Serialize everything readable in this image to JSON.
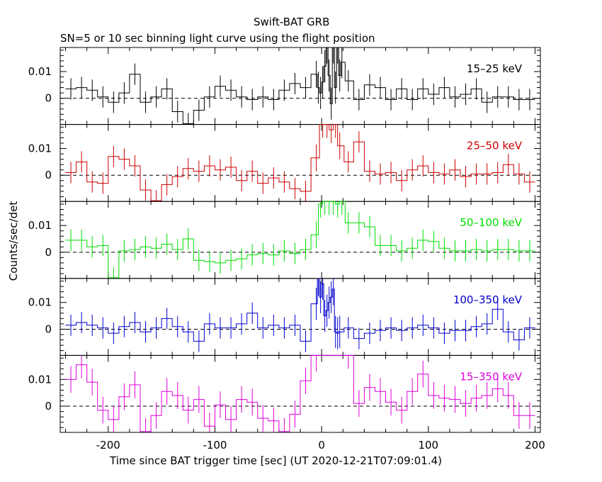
{
  "title": "Swift-BAT GRB",
  "subtitle": "SN=5 or 10 sec binning light curve using the flight position",
  "chart_data": {
    "type": "line",
    "title": "Swift-BAT GRB",
    "subtitle": "SN=5 or 10 sec binning light curve using the flight position",
    "xlabel": "Time since BAT trigger time [sec] (UT 2020-12-21T07:09:01.4)",
    "ylabel": "Counts/sec/det",
    "xlim": [
      -245,
      205
    ],
    "ylim": [
      -0.0098,
      0.019
    ],
    "x_ticks": [
      -200,
      -100,
      0,
      100,
      200
    ],
    "y_ticks": [
      0,
      0.01
    ],
    "y_tick_labels": [
      "0",
      "0.01"
    ],
    "zero_line": "dashed",
    "panels": [
      {
        "name": "15–25 keV",
        "color": "#000000",
        "x": [
          -235,
          -225,
          -215,
          -205,
          -195,
          -185,
          -175,
          -165,
          -155,
          -145,
          -135,
          -125,
          -115,
          -105,
          -95,
          -85,
          -75,
          -65,
          -55,
          -45,
          -35,
          -25,
          -15,
          -5,
          -3,
          -1,
          1,
          3,
          5,
          7,
          9,
          11,
          13,
          15,
          17,
          19,
          25,
          35,
          45,
          55,
          65,
          75,
          85,
          95,
          105,
          115,
          125,
          135,
          145,
          155,
          165,
          175,
          185,
          195
        ],
        "y": [
          0.0035,
          0.004,
          0.003,
          0.0005,
          -0.0015,
          0.002,
          0.009,
          -0.0015,
          0.0005,
          0.0035,
          -0.005,
          -0.0095,
          -0.0045,
          0.0005,
          0.0045,
          0.003,
          0.0005,
          -0.0005,
          0.0005,
          -0.0005,
          0.003,
          0.0055,
          0.004,
          0.009,
          0.004,
          0.002,
          0.006,
          0.012,
          0.019,
          0.0085,
          -0.002,
          0.019,
          0.004,
          0.019,
          0.0085,
          0.0135,
          0.0065,
          -0.0005,
          0.005,
          0.004,
          -0.0005,
          0.0035,
          -0.0005,
          0.0035,
          0.0015,
          0.004,
          0.0005,
          0.0015,
          0.0035,
          -0.0015,
          0.0005,
          0.0005,
          -0.0005,
          -0.0005
        ],
        "err": [
          0.004,
          0.004,
          0.004,
          0.004,
          0.004,
          0.004,
          0.004,
          0.004,
          0.004,
          0.004,
          0.004,
          0.004,
          0.004,
          0.004,
          0.004,
          0.004,
          0.004,
          0.004,
          0.004,
          0.004,
          0.004,
          0.004,
          0.004,
          0.005,
          0.006,
          0.006,
          0.006,
          0.006,
          0.006,
          0.006,
          0.006,
          0.006,
          0.006,
          0.006,
          0.006,
          0.006,
          0.004,
          0.004,
          0.004,
          0.004,
          0.004,
          0.004,
          0.004,
          0.004,
          0.004,
          0.004,
          0.004,
          0.004,
          0.004,
          0.004,
          0.004,
          0.004,
          0.004,
          0.004
        ]
      },
      {
        "name": "25–50 keV",
        "color": "#cc0000",
        "x": [
          -235,
          -225,
          -215,
          -205,
          -195,
          -185,
          -175,
          -165,
          -155,
          -145,
          -135,
          -125,
          -115,
          -105,
          -95,
          -85,
          -75,
          -65,
          -55,
          -45,
          -35,
          -25,
          -15,
          -5,
          1,
          5,
          9,
          13,
          17,
          25,
          35,
          45,
          55,
          65,
          75,
          85,
          95,
          105,
          115,
          125,
          135,
          145,
          155,
          165,
          175,
          185,
          195
        ],
        "y": [
          0.001,
          0.005,
          -0.0025,
          -0.003,
          0.007,
          0.006,
          0.0035,
          -0.0055,
          -0.0095,
          -0.0035,
          -0.0005,
          0.0025,
          0.0015,
          0.0035,
          0.002,
          0.003,
          -0.002,
          0.0015,
          -0.003,
          -0.001,
          -0.0025,
          -0.005,
          -0.006,
          0.0065,
          0.019,
          0.019,
          0.017,
          0.019,
          0.011,
          0.005,
          0.0125,
          0.0015,
          0.0005,
          0.001,
          -0.002,
          0.002,
          0.0035,
          0.001,
          0.0005,
          0.002,
          -0.0005,
          0.0005,
          0.0005,
          0.001,
          0.004,
          0.0005,
          -0.0025
        ],
        "err": [
          0.004,
          0.004,
          0.004,
          0.004,
          0.004,
          0.004,
          0.004,
          0.004,
          0.004,
          0.004,
          0.004,
          0.004,
          0.004,
          0.004,
          0.004,
          0.004,
          0.004,
          0.004,
          0.004,
          0.004,
          0.004,
          0.004,
          0.004,
          0.005,
          0.005,
          0.005,
          0.005,
          0.005,
          0.005,
          0.004,
          0.004,
          0.004,
          0.004,
          0.004,
          0.004,
          0.004,
          0.004,
          0.004,
          0.004,
          0.004,
          0.004,
          0.004,
          0.004,
          0.004,
          0.004,
          0.004,
          0.004
        ]
      },
      {
        "name": "50–100 keV",
        "color": "#00dd00",
        "x": [
          -235,
          -225,
          -215,
          -205,
          -195,
          -185,
          -175,
          -165,
          -155,
          -145,
          -135,
          -125,
          -115,
          -105,
          -95,
          -85,
          -75,
          -65,
          -55,
          -45,
          -35,
          -25,
          -15,
          -5,
          -1,
          3,
          7,
          11,
          15,
          19,
          25,
          35,
          45,
          55,
          65,
          75,
          85,
          95,
          105,
          115,
          125,
          135,
          145,
          155,
          165,
          175,
          185,
          195
        ],
        "y": [
          0.0045,
          0.0045,
          0.002,
          0.0025,
          -0.0095,
          0.0005,
          0.001,
          0.002,
          0.0015,
          0.003,
          0.001,
          0.005,
          -0.003,
          -0.0035,
          -0.004,
          -0.003,
          -0.0025,
          -0.001,
          -0.0005,
          -0.001,
          0.0005,
          -0.0005,
          0.001,
          0.0065,
          0.018,
          0.019,
          0.019,
          0.019,
          0.018,
          0.019,
          0.011,
          0.011,
          0.0095,
          0.0025,
          0.0025,
          0.0005,
          0.0015,
          0.0045,
          0.004,
          0.0015,
          0.0005,
          0.0005,
          0.001,
          0.0005,
          0.001,
          0.001,
          0.0005,
          0.0005
        ],
        "err": [
          0.004,
          0.004,
          0.004,
          0.004,
          0.004,
          0.004,
          0.004,
          0.004,
          0.004,
          0.004,
          0.004,
          0.004,
          0.004,
          0.004,
          0.004,
          0.004,
          0.004,
          0.004,
          0.004,
          0.004,
          0.004,
          0.004,
          0.004,
          0.005,
          0.005,
          0.005,
          0.005,
          0.005,
          0.005,
          0.005,
          0.004,
          0.004,
          0.004,
          0.004,
          0.004,
          0.004,
          0.004,
          0.004,
          0.004,
          0.004,
          0.004,
          0.004,
          0.004,
          0.004,
          0.004,
          0.004,
          0.004,
          0.004
        ]
      },
      {
        "name": "100–350 keV",
        "color": "#0000cc",
        "x": [
          -235,
          -225,
          -215,
          -205,
          -195,
          -185,
          -175,
          -165,
          -155,
          -145,
          -135,
          -125,
          -115,
          -105,
          -95,
          -85,
          -75,
          -65,
          -55,
          -45,
          -35,
          -25,
          -15,
          -5,
          -3,
          -1,
          1,
          3,
          5,
          7,
          9,
          11,
          13,
          15,
          17,
          25,
          35,
          45,
          55,
          65,
          75,
          85,
          95,
          105,
          115,
          125,
          135,
          145,
          155,
          165,
          175,
          185,
          195
        ],
        "y": [
          0.0015,
          0.0025,
          0.0015,
          0.0005,
          -0.0015,
          0.001,
          0.0025,
          -0.001,
          0.0005,
          0.004,
          0.001,
          -0.001,
          -0.0045,
          0.002,
          0.0005,
          0.0005,
          0.002,
          0.006,
          0.0005,
          0.0015,
          0.0005,
          0.0015,
          -0.0045,
          0.0095,
          0.0185,
          0.012,
          0.017,
          0.005,
          0.007,
          0.01,
          0.012,
          0.015,
          -0.001,
          -0.0015,
          -0.001,
          0.0005,
          -0.0035,
          -0.0015,
          -0.0005,
          0.0005,
          -0.0005,
          0.0005,
          0.0015,
          0.0005,
          -0.0015,
          -0.0005,
          -0.0005,
          0.001,
          0.002,
          0.0075,
          -0.001,
          -0.004,
          0.0005
        ],
        "err": [
          0.004,
          0.004,
          0.004,
          0.004,
          0.004,
          0.004,
          0.004,
          0.004,
          0.004,
          0.004,
          0.004,
          0.004,
          0.004,
          0.004,
          0.004,
          0.004,
          0.004,
          0.004,
          0.004,
          0.004,
          0.004,
          0.004,
          0.004,
          0.006,
          0.006,
          0.006,
          0.006,
          0.006,
          0.006,
          0.006,
          0.006,
          0.006,
          0.006,
          0.006,
          0.006,
          0.004,
          0.004,
          0.004,
          0.004,
          0.004,
          0.004,
          0.004,
          0.004,
          0.004,
          0.004,
          0.004,
          0.004,
          0.004,
          0.004,
          0.004,
          0.004,
          0.004,
          0.004
        ]
      },
      {
        "name": "15–350 keV",
        "color": "#dd00dd",
        "x": [
          -235,
          -225,
          -215,
          -205,
          -195,
          -185,
          -175,
          -165,
          -155,
          -145,
          -135,
          -125,
          -115,
          -105,
          -95,
          -85,
          -75,
          -65,
          -55,
          -45,
          -35,
          -25,
          -15,
          -5,
          25,
          35,
          45,
          55,
          65,
          75,
          85,
          95,
          105,
          115,
          125,
          135,
          145,
          155,
          165,
          175,
          185,
          195
        ],
        "y": [
          0.01,
          0.0155,
          0.009,
          -0.0015,
          -0.005,
          0.0035,
          0.008,
          -0.0095,
          -0.0035,
          0.0055,
          0.004,
          -0.0015,
          0.0025,
          -0.0075,
          0.0005,
          -0.005,
          0.0025,
          0.0015,
          -0.0045,
          -0.0055,
          -0.0095,
          -0.003,
          0.0095,
          0.019,
          0.019,
          0.001,
          0.007,
          0.0055,
          0.0015,
          -0.0015,
          0.0055,
          0.012,
          0.004,
          0.003,
          0.0025,
          0.001,
          0.003,
          0.004,
          0.0065,
          0.004,
          -0.0035,
          -0.0035
        ],
        "err": [
          0.005,
          0.005,
          0.005,
          0.005,
          0.005,
          0.005,
          0.005,
          0.005,
          0.005,
          0.005,
          0.005,
          0.005,
          0.005,
          0.005,
          0.005,
          0.005,
          0.005,
          0.005,
          0.005,
          0.005,
          0.005,
          0.005,
          0.005,
          0.006,
          0.005,
          0.005,
          0.005,
          0.005,
          0.005,
          0.005,
          0.005,
          0.005,
          0.005,
          0.005,
          0.005,
          0.005,
          0.005,
          0.005,
          0.005,
          0.005,
          0.005,
          0.005
        ]
      }
    ]
  }
}
